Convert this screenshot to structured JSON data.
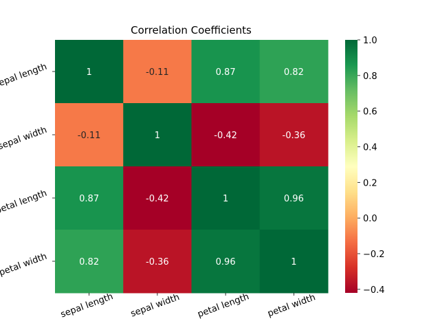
{
  "chart_data": {
    "type": "heatmap",
    "title": "Correlation Coefficients",
    "row_labels": [
      "sepal length",
      "sepal width",
      "petal length",
      "petal width"
    ],
    "col_labels": [
      "sepal length",
      "sepal width",
      "petal length",
      "petal width"
    ],
    "values": [
      [
        1,
        -0.11,
        0.87,
        0.82
      ],
      [
        -0.11,
        1,
        -0.42,
        -0.36
      ],
      [
        0.87,
        -0.42,
        1,
        0.96
      ],
      [
        0.82,
        -0.36,
        0.96,
        1
      ]
    ],
    "value_labels": [
      [
        "1",
        "-0.11",
        "0.87",
        "0.82"
      ],
      [
        "-0.11",
        "1",
        "-0.42",
        "-0.36"
      ],
      [
        "0.87",
        "-0.42",
        "1",
        "0.96"
      ],
      [
        "0.82",
        "-0.36",
        "0.96",
        "1"
      ]
    ],
    "colormap": "RdYlGn",
    "vmin": -0.42,
    "vmax": 1.0,
    "colorbar_ticks": [
      1.0,
      0.8,
      0.6,
      0.4,
      0.2,
      0.0,
      -0.2,
      -0.4
    ],
    "colorbar_tick_labels": [
      "1.0",
      "0.8",
      "0.6",
      "0.4",
      "0.2",
      "0.0",
      "−0.2",
      "−0.4"
    ]
  }
}
